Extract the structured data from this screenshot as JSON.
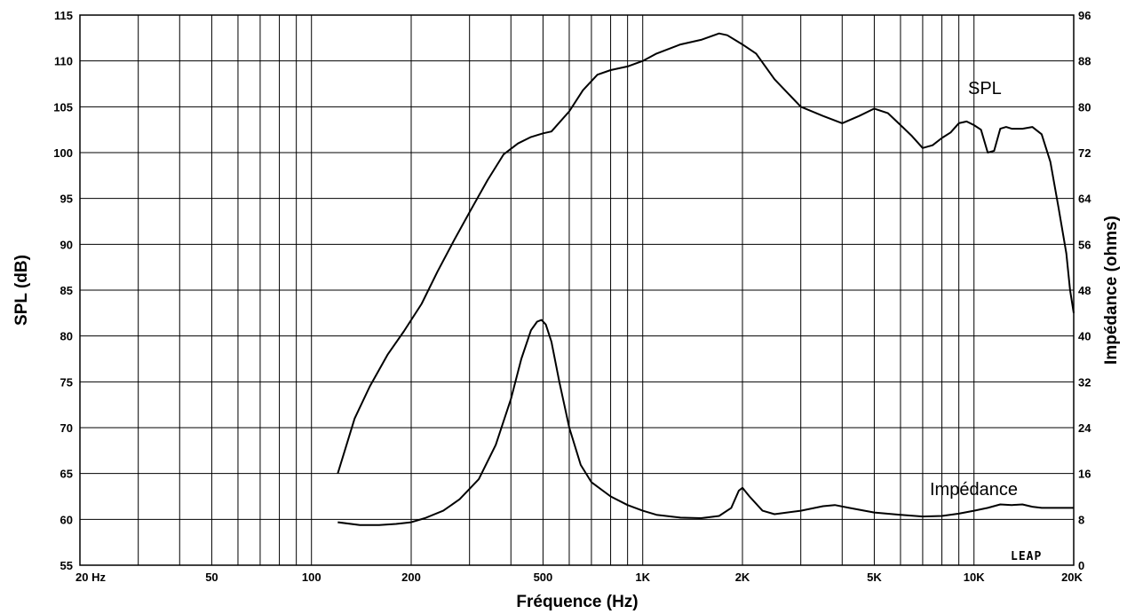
{
  "chart_data": {
    "type": "line",
    "xlabel": "Fréquence (Hz)",
    "ylabel_left": "SPL (dB)",
    "ylabel_right": "Impédance (ohms)",
    "x_scale": "log",
    "xlim": [
      20,
      20000
    ],
    "ylim_left": [
      55,
      115
    ],
    "ylim_right": [
      0,
      96
    ],
    "grid": true,
    "x_ticks": [
      {
        "value": 20,
        "label": "20  Hz"
      },
      {
        "value": 50,
        "label": "50"
      },
      {
        "value": 100,
        "label": "100"
      },
      {
        "value": 200,
        "label": "200"
      },
      {
        "value": 500,
        "label": "500"
      },
      {
        "value": 1000,
        "label": "1K"
      },
      {
        "value": 2000,
        "label": "2K"
      },
      {
        "value": 5000,
        "label": "5K"
      },
      {
        "value": 10000,
        "label": "10K"
      },
      {
        "value": 20000,
        "label": "20K"
      }
    ],
    "y_left_ticks": [
      55,
      60,
      65,
      70,
      75,
      80,
      85,
      90,
      95,
      100,
      105,
      110,
      115
    ],
    "y_right_ticks": [
      0,
      8,
      16,
      24,
      32,
      40,
      48,
      56,
      64,
      72,
      80,
      88,
      96
    ],
    "logo_text": "LEAP",
    "series": [
      {
        "name": "SPL",
        "axis": "left",
        "x": [
          120,
          135,
          150,
          170,
          190,
          215,
          240,
          270,
          300,
          340,
          380,
          420,
          460,
          500,
          530,
          600,
          660,
          730,
          800,
          900,
          1000,
          1100,
          1300,
          1500,
          1700,
          1800,
          2000,
          2200,
          2500,
          3000,
          3500,
          4000,
          4500,
          5000,
          5500,
          6000,
          6500,
          7000,
          7500,
          8000,
          8500,
          9000,
          9500,
          10000,
          10500,
          11000,
          11500,
          12000,
          12500,
          13000,
          14000,
          15000,
          16000,
          17000,
          18000,
          19000,
          19500,
          20000
        ],
        "y": [
          65.0,
          71.0,
          74.5,
          78.0,
          80.5,
          83.5,
          87.0,
          90.5,
          93.5,
          97.0,
          99.8,
          101.0,
          101.7,
          102.1,
          102.3,
          104.5,
          106.8,
          108.5,
          109.0,
          109.4,
          110.0,
          110.8,
          111.8,
          112.3,
          113.0,
          112.8,
          111.8,
          110.8,
          108.0,
          105.0,
          104.0,
          103.2,
          104.0,
          104.8,
          104.3,
          103.0,
          101.8,
          100.5,
          100.8,
          101.6,
          102.2,
          103.2,
          103.4,
          103.0,
          102.5,
          100.0,
          100.2,
          102.6,
          102.8,
          102.6,
          102.6,
          102.8,
          102.0,
          99.0,
          94.0,
          89.0,
          85.0,
          82.5
        ]
      },
      {
        "name": "Impédance",
        "axis": "right",
        "x": [
          120,
          140,
          160,
          180,
          200,
          220,
          250,
          280,
          320,
          360,
          400,
          430,
          460,
          480,
          495,
          510,
          530,
          560,
          600,
          650,
          700,
          800,
          900,
          1000,
          1100,
          1300,
          1500,
          1700,
          1850,
          1950,
          2000,
          2100,
          2300,
          2500,
          3000,
          3500,
          3800,
          4200,
          5000,
          6000,
          7000,
          8000,
          9000,
          10000,
          11000,
          12000,
          13000,
          14000,
          15000,
          16000,
          17000,
          18000,
          19000,
          20000
        ],
        "y": [
          7.5,
          7.0,
          7.0,
          7.2,
          7.5,
          8.2,
          9.5,
          11.5,
          15.0,
          21.0,
          29.0,
          36.0,
          41.0,
          42.5,
          42.8,
          42.0,
          39.0,
          32.0,
          24.0,
          17.5,
          14.5,
          12.0,
          10.5,
          9.5,
          8.8,
          8.3,
          8.2,
          8.6,
          10.0,
          13.0,
          13.5,
          12.0,
          9.5,
          8.9,
          9.5,
          10.3,
          10.5,
          10.0,
          9.2,
          8.8,
          8.5,
          8.6,
          9.0,
          9.5,
          10.0,
          10.6,
          10.5,
          10.6,
          10.2,
          10.0,
          10.0,
          10.0,
          10.0,
          10.0
        ]
      }
    ]
  }
}
